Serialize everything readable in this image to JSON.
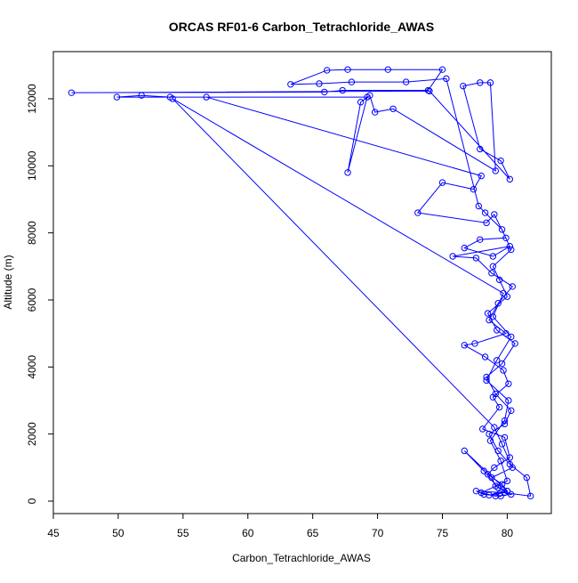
{
  "chart_data": {
    "type": "line",
    "markers": true,
    "color": "#0000ff",
    "title": "ORCAS RF01-6 Carbon_Tetrachloride_AWAS",
    "xlabel": "Carbon_Tetrachloride_AWAS",
    "ylabel": "Altitude (m)",
    "xlim": [
      45,
      83.4
    ],
    "ylim": [
      -372,
      13406
    ],
    "xticks": [
      45,
      50,
      55,
      60,
      65,
      70,
      75,
      80
    ],
    "yticks": [
      0,
      2000,
      4000,
      6000,
      8000,
      10000,
      12000
    ],
    "x": [
      79.5,
      78.2,
      77.6,
      79.8,
      81.8,
      81.5,
      80.2,
      79.3,
      78.6,
      79.8,
      80.3,
      79.1,
      78.4,
      79.6,
      80.6,
      79.2,
      78.5,
      80.0,
      79.4,
      78.9,
      80.3,
      79.6,
      78.3,
      77.8,
      75.3,
      72.2,
      68.0,
      65.5,
      63.3,
      66.1,
      67.7,
      70.8,
      75.0,
      73.9,
      67.3,
      65.9,
      46.4,
      74.0,
      80.2,
      79.5,
      77.9,
      76.6,
      77.9,
      78.7,
      79.1,
      71.2,
      69.8,
      69.4,
      68.7,
      67.7,
      69.2,
      49.9,
      51.8,
      54.0,
      56.8,
      78.0,
      77.4,
      75.0,
      73.1,
      78.4,
      79.0,
      79.9,
      77.9,
      76.7,
      78.9,
      80.2,
      75.8,
      77.6,
      78.8,
      80.4,
      79.3,
      78.6,
      79.9,
      77.5,
      76.7,
      78.3,
      79.7,
      80.1,
      78.9,
      79.4,
      78.1,
      79.8,
      80.2,
      79.0,
      78.5,
      79.6,
      80.0,
      76.7,
      78.2,
      79.3,
      80.3,
      79.1,
      78.0,
      80.0,
      79.5,
      78.7,
      79.8,
      80.1,
      78.4,
      79.2,
      80.3,
      78.9,
      79.7,
      54.2,
      79.0,
      79.6,
      80.4,
      78.8,
      79.1,
      80.0,
      78.6,
      79.4
    ],
    "values": [
      150,
      200,
      300,
      250,
      150,
      700,
      1100,
      1500,
      2000,
      2300,
      2700,
      3200,
      3700,
      4100,
      4700,
      5100,
      5600,
      6100,
      6600,
      7000,
      7500,
      8100,
      8600,
      8800,
      12600,
      12500,
      12500,
      12450,
      12430,
      12850,
      12870,
      12870,
      12870,
      12250,
      12250,
      12200,
      12180,
      12230,
      9600,
      10150,
      10500,
      12380,
      12480,
      12480,
      9850,
      11700,
      11600,
      12100,
      11900,
      9800,
      12050,
      12050,
      12100,
      12050,
      12050,
      9700,
      9300,
      9500,
      8600,
      8300,
      8550,
      7850,
      7800,
      7550,
      7300,
      7600,
      7300,
      7250,
      6800,
      6400,
      5900,
      5400,
      5000,
      4700,
      4650,
      4300,
      3900,
      3500,
      3100,
      2800,
      2150,
      1900,
      1300,
      1000,
      800,
      500,
      300,
      1500,
      900,
      400,
      200,
      150,
      250,
      600,
      1200,
      1800,
      2400,
      3000,
      3600,
      4200,
      4900,
      5500,
      6200,
      12000,
      2200,
      1700,
      1000,
      700,
      450,
      300,
      180,
      220
    ]
  }
}
